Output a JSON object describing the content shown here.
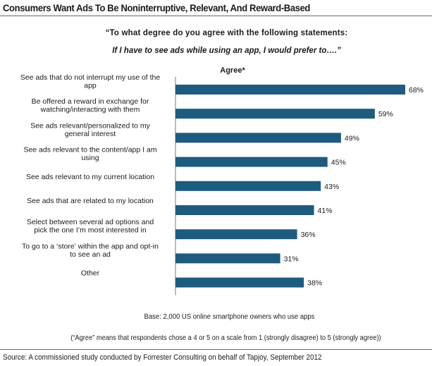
{
  "title": "Consumers Want Ads To Be Noninterruptive, Relevant, And Reward-Based",
  "question": "“To what degree do you agree with the following statements:",
  "prompt": "If I have to see ads while using an app, I would prefer to….”",
  "base_note": "Base: 2,000 US online smartphone owners who use apps",
  "footnote": "(“Agree” means that respondents chose a 4 or 5 on a scale from 1 (strongly disagree) to 5 (strongly agree))",
  "source": "Source: A commissioned study conducted by Forrester Consulting on behalf of Tapjoy, September 2012",
  "chart_data": {
    "type": "bar",
    "orientation": "horizontal",
    "series": [
      {
        "name": "Agree*",
        "values": [
          68,
          59,
          49,
          45,
          43,
          41,
          36,
          31,
          38
        ]
      }
    ],
    "categories": [
      [
        "See ads that do not interrupt my use of the",
        "app"
      ],
      [
        "Be offered a reward in exchange for",
        "watching/interacting with them"
      ],
      [
        "See ads relevant/personalized to my",
        "general interest"
      ],
      [
        "See ads relevant to the content/app I am",
        "using"
      ],
      [
        "See ads relevant to my current location"
      ],
      [
        "See ads that are related to my location"
      ],
      [
        "Select between several ad options and",
        "pick the one I’m most interested in"
      ],
      [
        "To go to a ‘store’ within the app and opt-in",
        "to see an ad"
      ],
      [
        "Other"
      ]
    ],
    "value_suffix": "%",
    "xlim": [
      0,
      68
    ],
    "bar_color": "#1e5b7e",
    "grid": false,
    "legend": "top-center"
  }
}
